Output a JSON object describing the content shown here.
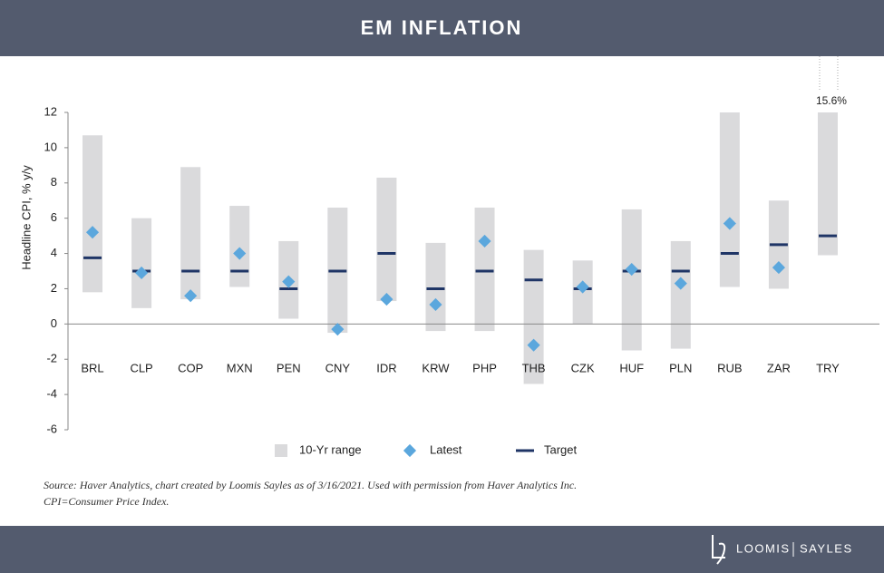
{
  "chart_data": {
    "type": "range-dot",
    "title": "EM INFLATION",
    "y_label": "Headline CPI, % y/y",
    "categories": [
      "BRL",
      "CLP",
      "COP",
      "MXN",
      "PEN",
      "CNY",
      "IDR",
      "KRW",
      "PHP",
      "THB",
      "CZK",
      "HUF",
      "PLN",
      "RUB",
      "ZAR",
      "TRY"
    ],
    "series": [
      {
        "name": "10-Yr range",
        "color": "#dadadc",
        "low": [
          1.8,
          0.9,
          1.4,
          2.1,
          0.3,
          -0.5,
          1.3,
          -0.4,
          -0.4,
          -3.4,
          0.0,
          -1.5,
          -1.4,
          2.1,
          2.0,
          3.9
        ],
        "high": [
          10.7,
          6.0,
          8.9,
          6.7,
          4.7,
          6.6,
          8.3,
          4.6,
          6.6,
          4.2,
          3.6,
          6.5,
          4.7,
          12,
          7.0,
          12
        ]
      },
      {
        "name": "Latest",
        "color": "#5ba7dd",
        "values": [
          5.2,
          2.9,
          1.6,
          4.0,
          2.4,
          -0.3,
          1.4,
          1.1,
          4.7,
          -1.2,
          2.1,
          3.1,
          2.3,
          5.7,
          3.2,
          15.6
        ],
        "value_labels": [
          null,
          null,
          null,
          null,
          null,
          null,
          null,
          null,
          null,
          null,
          null,
          null,
          null,
          null,
          null,
          "15.6%"
        ]
      },
      {
        "name": "Target",
        "color": "#1f3566",
        "values": [
          3.75,
          3,
          3,
          3,
          2,
          3,
          4,
          2,
          3,
          2.5,
          2,
          3,
          3,
          4,
          4.5,
          5
        ]
      }
    ],
    "ylim": [
      -6,
      12
    ],
    "yticks": [
      -6,
      -4,
      -2,
      0,
      2,
      4,
      6,
      8,
      10,
      12
    ],
    "zero_line": true,
    "legend": "bottom",
    "source": [
      "Source: Haver Analytics, chart created by Loomis Sayles as of 3/16/2021. Used with permission from Haver Analytics Inc.",
      "CPI=Consumer Price Index."
    ],
    "brand": [
      "LOOMIS",
      "SAYLES"
    ]
  }
}
